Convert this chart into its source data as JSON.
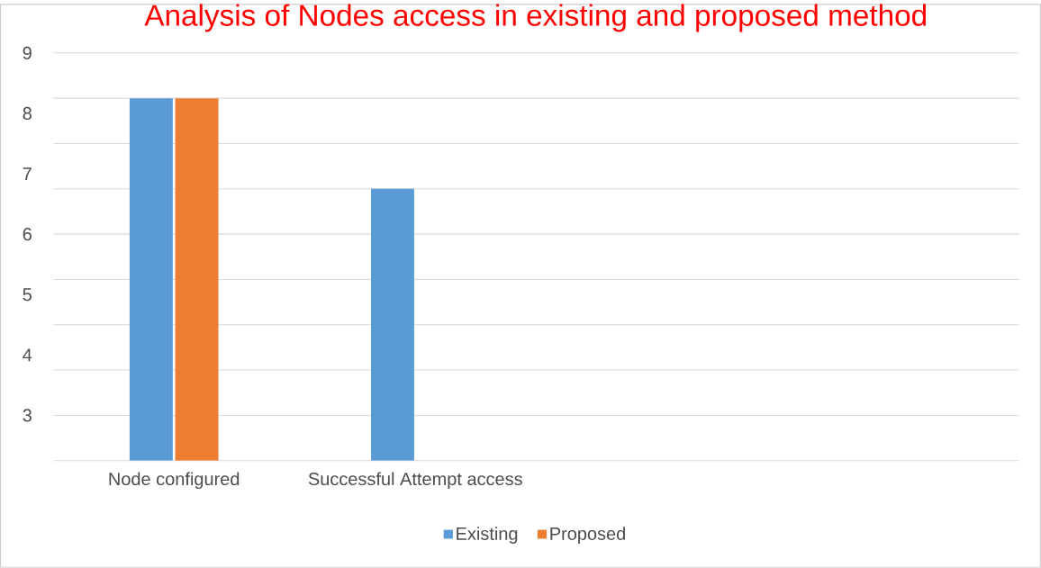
{
  "chart_data": {
    "type": "bar",
    "title": "Analysis of Nodes access in existing and proposed method",
    "categories": [
      "Node configured",
      "Successful Attempt access",
      null,
      null
    ],
    "series": [
      {
        "name": "Existing",
        "color": "#5b9bd5",
        "values": [
          8.25,
          6.75,
          null,
          null
        ]
      },
      {
        "name": "Proposed",
        "color": "#ed7d31",
        "values": [
          8.25,
          null,
          null,
          null
        ]
      }
    ],
    "ylim": [
      2.25,
      9
    ],
    "yticks": [
      3,
      4,
      5,
      6,
      7,
      8,
      9,
      {
        "value": 2.25,
        "label": null
      },
      {
        "value": 3,
        "label": null
      },
      {
        "value": 3.75,
        "label": null
      },
      {
        "value": 4.5,
        "label": null
      },
      {
        "value": 5.25,
        "label": null
      },
      {
        "value": 6,
        "label": null
      },
      {
        "value": 6.75,
        "label": null
      },
      {
        "value": 7.5,
        "label": null
      },
      {
        "value": 8.25,
        "label": null
      },
      {
        "value": 9,
        "label": null
      }
    ],
    "grid": "y",
    "legend": "bottom"
  }
}
